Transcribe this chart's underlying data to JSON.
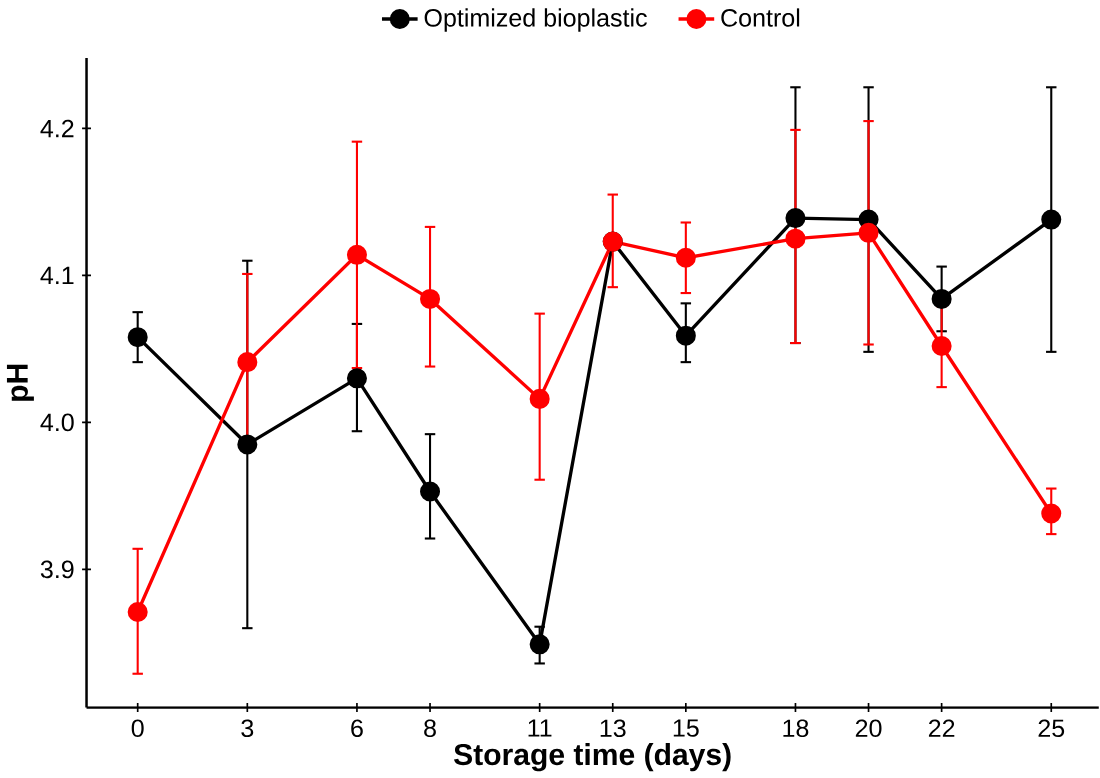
{
  "chart_data": {
    "type": "line",
    "xlabel": "Storage time (days)",
    "ylabel": "pH",
    "x": [
      0,
      3,
      6,
      8,
      11,
      13,
      15,
      18,
      20,
      22,
      25
    ],
    "xlim": [
      -1.4,
      26.3
    ],
    "xticks": [
      0,
      3,
      6,
      8,
      11,
      13,
      15,
      18,
      20,
      22,
      25
    ],
    "ylim": [
      3.806,
      4.248
    ],
    "yticks": [
      3.9,
      {
        "value": 4.0,
        "label": "4.0"
      },
      4.1,
      4.2
    ],
    "grid": false,
    "legend": "top",
    "marker": "circle",
    "line_style": "solid",
    "series": [
      {
        "name": "Optimized bioplastic",
        "color": "#000000",
        "values": [
          4.058,
          3.985,
          4.03,
          3.953,
          3.849,
          4.123,
          4.059,
          4.139,
          4.138,
          4.084,
          4.138
        ],
        "errors": [
          [
            4.041,
            4.075
          ],
          [
            3.86,
            4.11
          ],
          [
            3.994,
            4.067
          ],
          [
            3.921,
            3.992
          ],
          [
            3.836,
            3.861
          ],
          null,
          [
            4.041,
            4.081
          ],
          [
            4.054,
            4.228
          ],
          [
            4.048,
            4.228
          ],
          [
            4.062,
            4.106
          ],
          [
            4.048,
            4.228
          ]
        ]
      },
      {
        "name": "Control",
        "color": "#ff0000",
        "values": [
          3.871,
          4.041,
          4.114,
          4.084,
          4.016,
          4.123,
          4.112,
          4.125,
          4.129,
          4.052,
          3.938
        ],
        "errors": [
          [
            3.829,
            3.914
          ],
          [
            3.981,
            4.101
          ],
          [
            4.037,
            4.191
          ],
          [
            4.038,
            4.133
          ],
          [
            3.961,
            4.074
          ],
          [
            4.092,
            4.155
          ],
          [
            4.088,
            4.136
          ],
          [
            4.054,
            4.199
          ],
          [
            4.053,
            4.205
          ],
          [
            4.024,
            4.079
          ],
          [
            3.924,
            3.955
          ]
        ]
      }
    ]
  }
}
